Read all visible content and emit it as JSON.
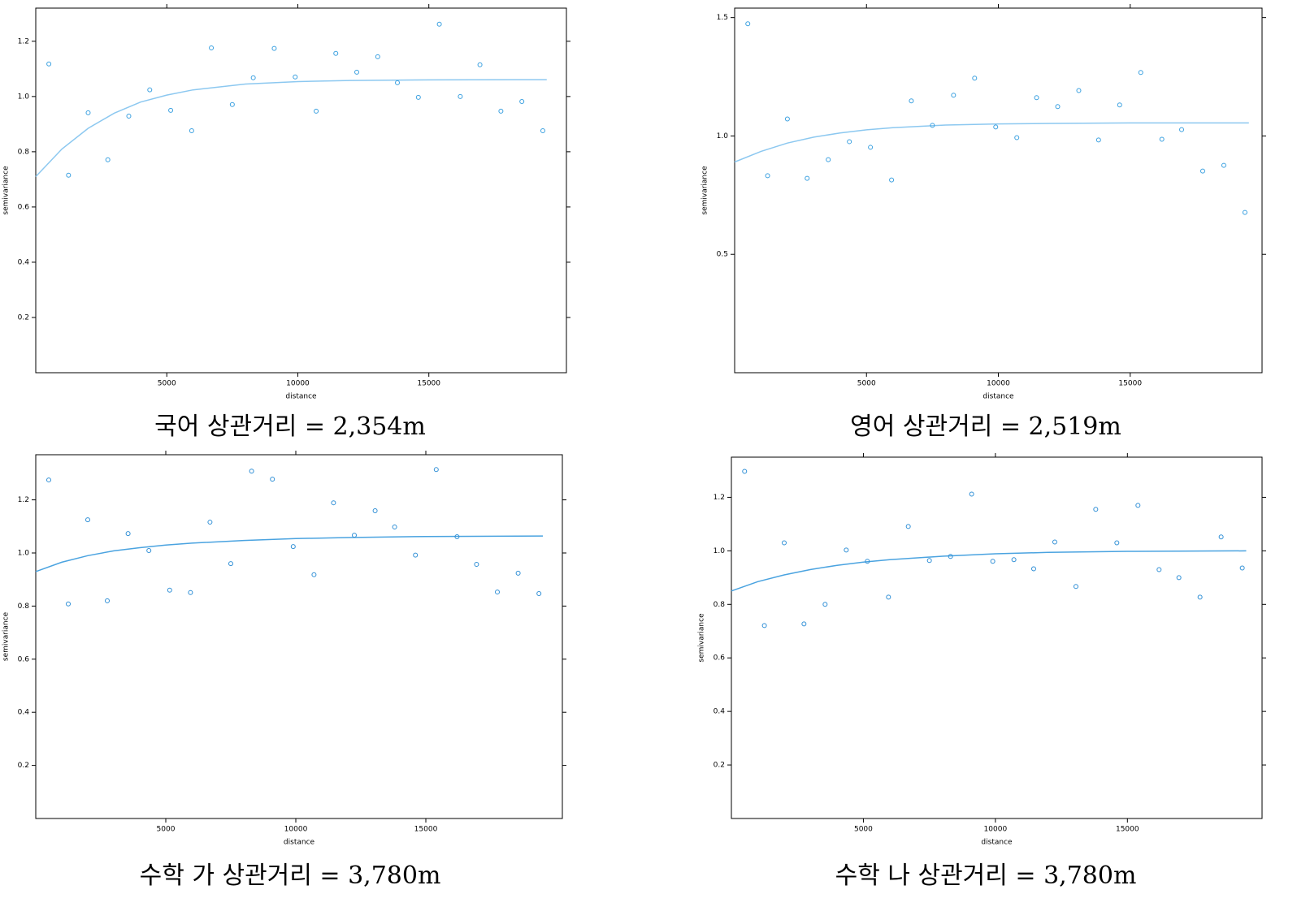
{
  "chart_data": [
    {
      "type": "scatter",
      "caption": "국어 상관거리 = 2,354m",
      "xlabel": "distance",
      "ylabel": "semivariance",
      "color": "#3aa0e0",
      "fit_color": "#8cc8f0",
      "xlim": [
        0,
        20250
      ],
      "ylim": [
        0,
        1.32
      ],
      "xticks": [
        5000,
        10000,
        15000
      ],
      "yticks": [
        0.2,
        0.4,
        0.6,
        0.8,
        {
          "value": 1,
          "label": "1.0"
        },
        1.2
      ],
      "x": [
        500,
        1250,
        2000,
        2750,
        3550,
        4350,
        5150,
        5950,
        6700,
        7500,
        8300,
        9100,
        9900,
        10700,
        11450,
        12250,
        13050,
        13800,
        14600,
        15400,
        16200,
        16950,
        17750,
        18550,
        19350
      ],
      "values": [
        1.118,
        0.715,
        0.941,
        0.771,
        0.929,
        1.024,
        0.95,
        0.876,
        1.176,
        0.971,
        1.068,
        1.174,
        1.071,
        0.947,
        1.156,
        1.088,
        1.144,
        1.05,
        0.997,
        1.262,
        1.0,
        1.115,
        0.947,
        0.982,
        0.876
      ],
      "fit": {
        "x": [
          0,
          1000,
          2000,
          3000,
          4000,
          5000,
          6000,
          8000,
          10000,
          12000,
          15000,
          19500
        ],
        "values": [
          0.71,
          0.81,
          0.885,
          0.94,
          0.98,
          1.005,
          1.024,
          1.045,
          1.054,
          1.058,
          1.06,
          1.061
        ]
      }
    },
    {
      "type": "scatter",
      "caption": "영어 상관거리 = 2,519m",
      "xlabel": "distance",
      "ylabel": "semivariance",
      "color": "#3aa0e0",
      "fit_color": "#8cc8f0",
      "xlim": [
        0,
        20000
      ],
      "ylim": [
        0,
        1.54
      ],
      "xticks": [
        5000,
        10000,
        15000
      ],
      "yticks": [
        0.5,
        {
          "value": 1,
          "label": "1.0"
        },
        1.5
      ],
      "x": [
        500,
        1250,
        2000,
        2750,
        3550,
        4350,
        5150,
        5950,
        6700,
        7500,
        8300,
        9100,
        9900,
        10700,
        11450,
        12250,
        13050,
        13800,
        14600,
        15400,
        16200,
        16950,
        17750,
        18550,
        19350
      ],
      "values": [
        1.474,
        0.832,
        1.072,
        0.821,
        0.9,
        0.976,
        0.952,
        0.814,
        1.148,
        1.045,
        1.172,
        1.244,
        1.038,
        0.993,
        1.162,
        1.124,
        1.192,
        0.983,
        1.131,
        1.268,
        0.986,
        1.027,
        0.852,
        0.876,
        0.677
      ],
      "fit": {
        "x": [
          0,
          1000,
          2000,
          3000,
          4000,
          5000,
          6000,
          8000,
          10000,
          12000,
          15000,
          19500
        ],
        "values": [
          0.89,
          0.935,
          0.97,
          0.995,
          1.013,
          1.026,
          1.035,
          1.046,
          1.051,
          1.053,
          1.055,
          1.055
        ]
      }
    },
    {
      "type": "scatter",
      "caption": "수학 가 상관거리 = 3,780m",
      "xlabel": "distance",
      "ylabel": "semivariance",
      "color": "#2f8fd6",
      "fit_color": "#4aa3e0",
      "xlim": [
        0,
        20250
      ],
      "ylim": [
        0,
        1.37
      ],
      "xticks": [
        5000,
        10000,
        15000
      ],
      "yticks": [
        0.2,
        0.4,
        0.6,
        0.8,
        {
          "value": 1,
          "label": "1.0"
        },
        1.2
      ],
      "x": [
        500,
        1250,
        2000,
        2750,
        3550,
        4350,
        5150,
        5950,
        6700,
        7500,
        8300,
        9100,
        9900,
        10700,
        11450,
        12250,
        13050,
        13800,
        14600,
        15400,
        16200,
        16950,
        17750,
        18550,
        19350
      ],
      "values": [
        1.275,
        0.808,
        1.125,
        0.82,
        1.073,
        1.009,
        0.86,
        0.851,
        1.116,
        0.96,
        1.308,
        1.278,
        1.024,
        0.918,
        1.189,
        1.067,
        1.159,
        1.098,
        0.992,
        1.314,
        1.061,
        0.957,
        0.853,
        0.924,
        0.847
      ],
      "fit": {
        "x": [
          0,
          1000,
          2000,
          3000,
          4000,
          5000,
          6000,
          8000,
          10000,
          12000,
          15000,
          19500
        ],
        "values": [
          0.93,
          0.965,
          0.99,
          1.008,
          1.02,
          1.03,
          1.037,
          1.047,
          1.054,
          1.058,
          1.062,
          1.064
        ]
      }
    },
    {
      "type": "scatter",
      "caption": "수학 나 상관거리 = 3,780m",
      "xlabel": "distance",
      "ylabel": "semivariance",
      "color": "#2f8fd6",
      "fit_color": "#4aa3e0",
      "xlim": [
        0,
        20100
      ],
      "ylim": [
        0,
        1.35
      ],
      "xticks": [
        5000,
        10000,
        15000
      ],
      "yticks": [
        0.2,
        0.4,
        0.6,
        0.8,
        {
          "value": 1,
          "label": "1.0"
        },
        1.2
      ],
      "x": [
        500,
        1250,
        2000,
        2750,
        3550,
        4350,
        5150,
        5950,
        6700,
        7500,
        8300,
        9100,
        9900,
        10700,
        11450,
        12250,
        13050,
        13800,
        14600,
        15400,
        16200,
        16950,
        17750,
        18550,
        19350
      ],
      "values": [
        1.297,
        0.721,
        1.03,
        0.727,
        0.8,
        1.003,
        0.961,
        0.827,
        1.091,
        0.964,
        0.979,
        1.212,
        0.961,
        0.967,
        0.933,
        1.033,
        0.867,
        1.155,
        1.03,
        1.17,
        0.93,
        0.9,
        0.827,
        1.052,
        0.936
      ],
      "fit": {
        "x": [
          0,
          1000,
          2000,
          3000,
          4000,
          5000,
          6000,
          8000,
          10000,
          12000,
          15000,
          19500
        ],
        "values": [
          0.85,
          0.885,
          0.91,
          0.93,
          0.946,
          0.958,
          0.967,
          0.98,
          0.989,
          0.994,
          0.998,
          1.0
        ]
      }
    }
  ]
}
